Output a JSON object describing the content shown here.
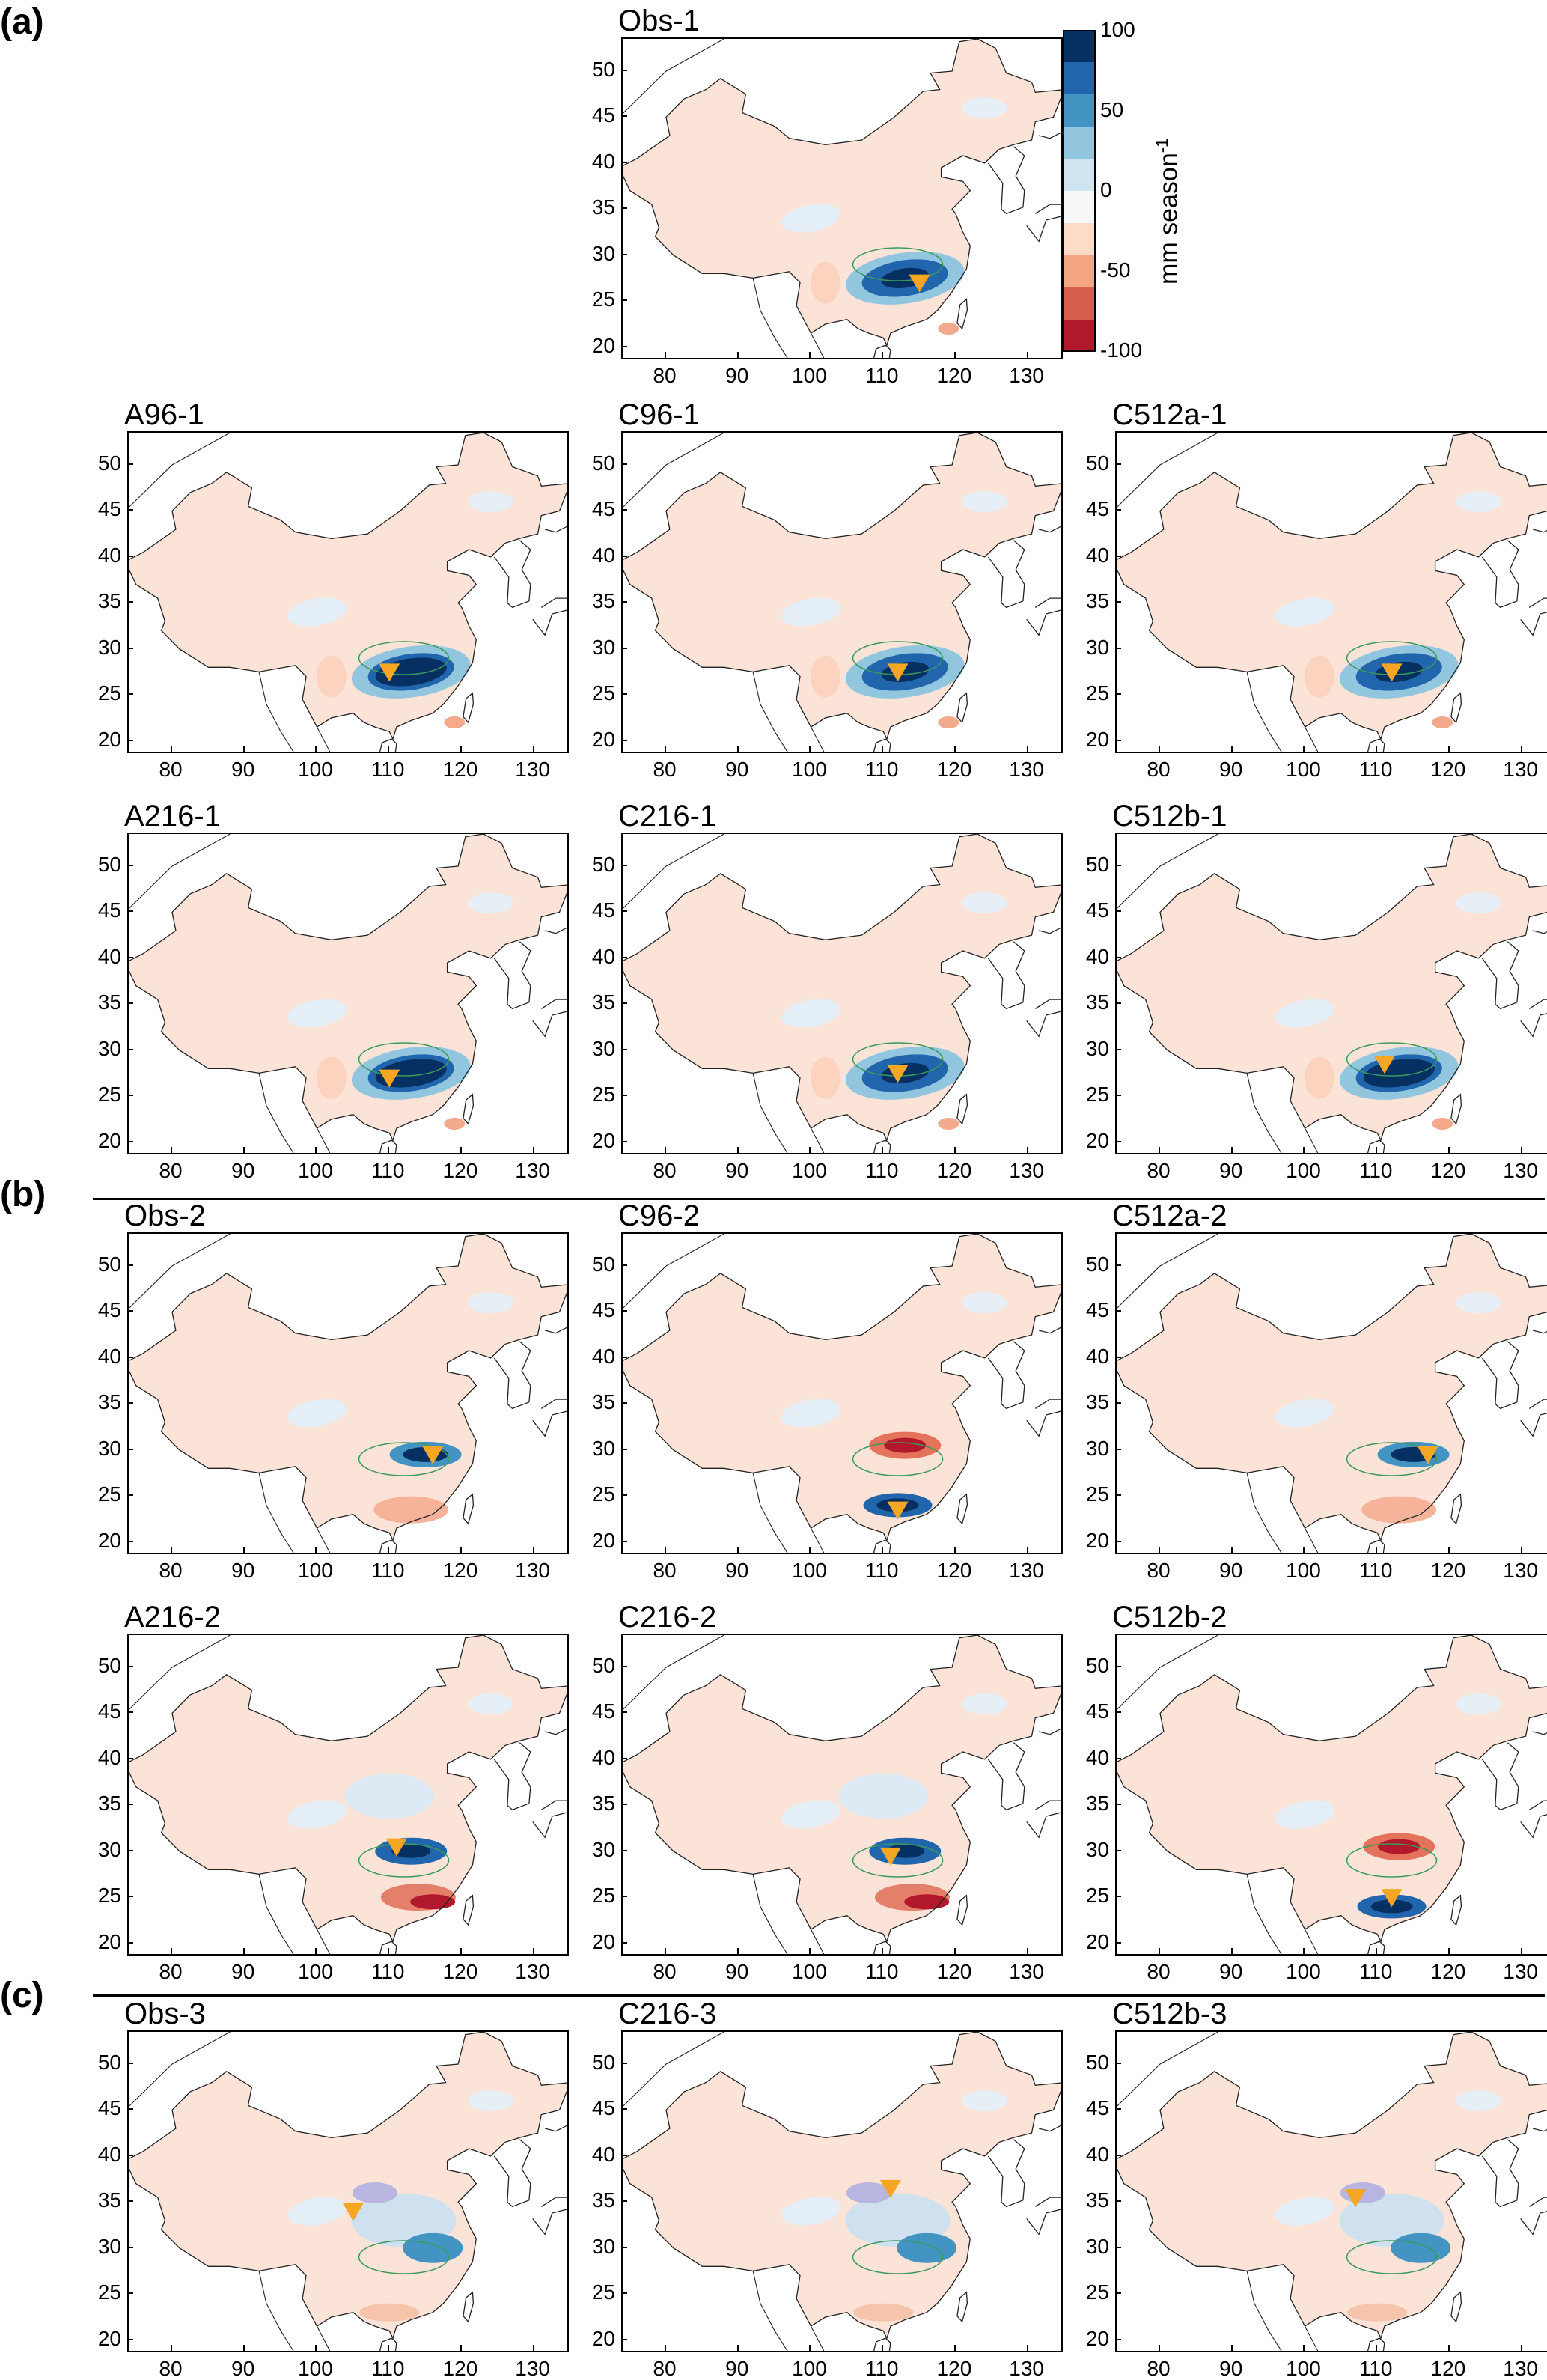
{
  "figure": {
    "sections": [
      {
        "label": "(a)"
      },
      {
        "label": "(b)"
      },
      {
        "label": "(c)"
      }
    ],
    "axes": {
      "x_ticks": [
        "80",
        "90",
        "100",
        "110",
        "120",
        "130"
      ],
      "y_ticks": [
        "50",
        "45",
        "40",
        "35",
        "30",
        "25",
        "20"
      ],
      "lon_range": [
        74,
        135
      ],
      "lat_range": [
        18.5,
        53.5
      ]
    },
    "colorbar": {
      "label": "mm season",
      "label_superscript": "-1",
      "ticks": [
        "100",
        "50",
        "0",
        "-50",
        "-100"
      ],
      "range": [
        -100,
        100
      ],
      "colors": [
        "#b2182b",
        "#d6604d",
        "#f4a582",
        "#fddbc7",
        "#f7f7f7",
        "#d1e5f0",
        "#92c5de",
        "#4393c3",
        "#2166ac",
        "#053061"
      ]
    },
    "marker_color": "#f5a623",
    "panels": [
      {
        "title": "Obs-1",
        "section": "(a)",
        "pattern": "south-anom",
        "marker": [
          115,
          27
        ]
      },
      {
        "title": "A96-1",
        "section": "(a)",
        "pattern": "strong-south",
        "marker": [
          110,
          27.5
        ]
      },
      {
        "title": "C96-1",
        "section": "(a)",
        "pattern": "south-anom",
        "marker": [
          112,
          27.5
        ]
      },
      {
        "title": "C512a-1",
        "section": "(a)",
        "pattern": "south-anom",
        "marker": [
          112,
          27.5
        ]
      },
      {
        "title": "A216-1",
        "section": "(a)",
        "pattern": "strong-south",
        "marker": [
          110,
          27
        ]
      },
      {
        "title": "C216-1",
        "section": "(a)",
        "pattern": "south-anom",
        "marker": [
          112,
          27.5
        ]
      },
      {
        "title": "C512b-1",
        "section": "(a)",
        "pattern": "strong-south",
        "marker": [
          111,
          28.5
        ]
      },
      {
        "title": "Obs-2",
        "section": "(b)",
        "pattern": "yangtze-anom",
        "marker": [
          116,
          29.5
        ]
      },
      {
        "title": "C96-2",
        "section": "(b)",
        "pattern": "dipole",
        "marker": [
          112,
          23.5
        ]
      },
      {
        "title": "C512a-2",
        "section": "(b)",
        "pattern": "yangtze-anom",
        "marker": [
          117,
          29.5
        ]
      },
      {
        "title": "A216-2",
        "section": "(b)",
        "pattern": "yangtze-dipole",
        "marker": [
          111,
          30.5
        ]
      },
      {
        "title": "C216-2",
        "section": "(b)",
        "pattern": "yangtze-dipole",
        "marker": [
          111,
          29.5
        ]
      },
      {
        "title": "C512b-2",
        "section": "(b)",
        "pattern": "dipole",
        "marker": [
          112,
          25
        ]
      },
      {
        "title": "Obs-3",
        "section": "(c)",
        "pattern": "north-anom",
        "marker": [
          105,
          34
        ]
      },
      {
        "title": "C216-3",
        "section": "(c)",
        "pattern": "north-anom",
        "marker": [
          111,
          36.5
        ]
      },
      {
        "title": "C512b-3",
        "section": "(c)",
        "pattern": "north-anom",
        "marker": [
          107,
          35.5
        ]
      }
    ]
  }
}
